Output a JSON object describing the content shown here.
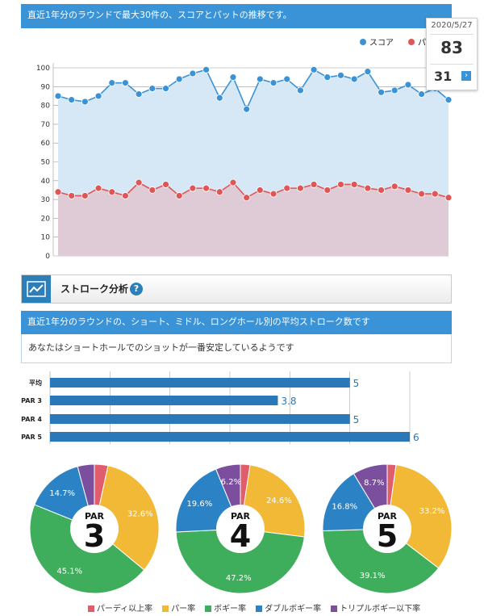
{
  "header1": "直近1年分のラウンドで最大30件の、スコアとパットの推移です。",
  "tooltip": {
    "date": "2020/5/27",
    "score": "83",
    "putt": "31",
    "btn": "›"
  },
  "section": {
    "title": "ストローク分析",
    "help": "?"
  },
  "header2": "直近1年分のラウンドの、ショート、ミドル、ロングホール別の平均ストローク数です",
  "message": "あなたはショートホールでのショットが一番安定しているようです",
  "chart_data": [
    {
      "type": "line",
      "series": [
        {
          "name": "スコア",
          "color": "#3a93d6",
          "values": [
            85,
            83,
            82,
            85,
            92,
            92,
            86,
            89,
            89,
            94,
            97,
            99,
            84,
            95,
            78,
            94,
            92,
            94,
            88,
            99,
            95,
            96,
            94,
            98,
            87,
            88,
            91,
            86,
            89,
            83
          ]
        },
        {
          "name": "パット",
          "color": "#e05656",
          "values": [
            34,
            32,
            32,
            36,
            34,
            32,
            39,
            35,
            38,
            32,
            36,
            36,
            34,
            39,
            31,
            35,
            33,
            36,
            36,
            38,
            35,
            38,
            38,
            36,
            35,
            37,
            35,
            33,
            33,
            31
          ]
        }
      ],
      "legend_visible": [
        "スコア",
        "パ"
      ],
      "yticks": [
        "0",
        "10",
        "20",
        "30",
        "40",
        "50",
        "60",
        "70",
        "80",
        "90",
        "100"
      ],
      "ylim": [
        0,
        100
      ],
      "grid": true,
      "legend": "top-right"
    },
    {
      "type": "bar",
      "orientation": "horizontal",
      "categories": [
        "平均",
        "PAR 3",
        "PAR 4",
        "PAR 5"
      ],
      "values": [
        5,
        3.8,
        5,
        6
      ],
      "value_labels": [
        "5",
        "3.8",
        "5",
        "6"
      ],
      "xlim": [
        0,
        6
      ],
      "color": "#2a78b8"
    },
    {
      "type": "pie",
      "charts": [
        {
          "label_top": "PAR",
          "label_big": "3",
          "values": [
            3.4,
            32.6,
            45.1,
            14.7,
            4.2
          ],
          "labels": [
            "",
            "32.6%",
            "45.1%",
            "14.7%",
            ""
          ]
        },
        {
          "label_top": "PAR",
          "label_big": "4",
          "values": [
            2.4,
            24.6,
            47.2,
            19.6,
            6.2
          ],
          "labels": [
            "",
            "24.6%",
            "47.2%",
            "19.6%",
            "6.2%"
          ]
        },
        {
          "label_top": "PAR",
          "label_big": "5",
          "values": [
            2.2,
            33.2,
            39.1,
            16.8,
            8.7
          ],
          "labels": [
            "",
            "33.2%",
            "39.1%",
            "16.8%",
            "8.7%"
          ]
        }
      ],
      "categories": [
        "パーディ以上率",
        "パー率",
        "ボギー率",
        "ダブルボギー率",
        "トリプルボギー以下率"
      ],
      "colors": [
        "#e05d6b",
        "#f1b935",
        "#3fae5c",
        "#2b83c6",
        "#7b4f9e"
      ]
    }
  ]
}
